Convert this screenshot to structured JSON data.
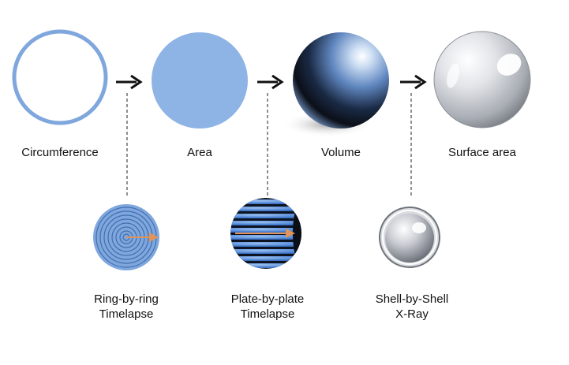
{
  "stages": [
    {
      "id": "circumference",
      "label": "Circumference"
    },
    {
      "id": "area",
      "label": "Area"
    },
    {
      "id": "volume",
      "label": "Volume"
    },
    {
      "id": "surface",
      "label": "Surface area"
    }
  ],
  "methods": [
    {
      "id": "ring",
      "line1": "Ring-by-ring",
      "line2": "Timelapse"
    },
    {
      "id": "plate",
      "line1": "Plate-by-plate",
      "line2": "Timelapse"
    },
    {
      "id": "shell",
      "line1": "Shell-by-Shell",
      "line2": "X-Ray"
    }
  ],
  "colors": {
    "ring_blue": "#7fa7dd",
    "area_blue": "#8eb3e5",
    "arrow": "#111111",
    "radius_arrow": "#e2935a",
    "dashed": "#555555"
  }
}
